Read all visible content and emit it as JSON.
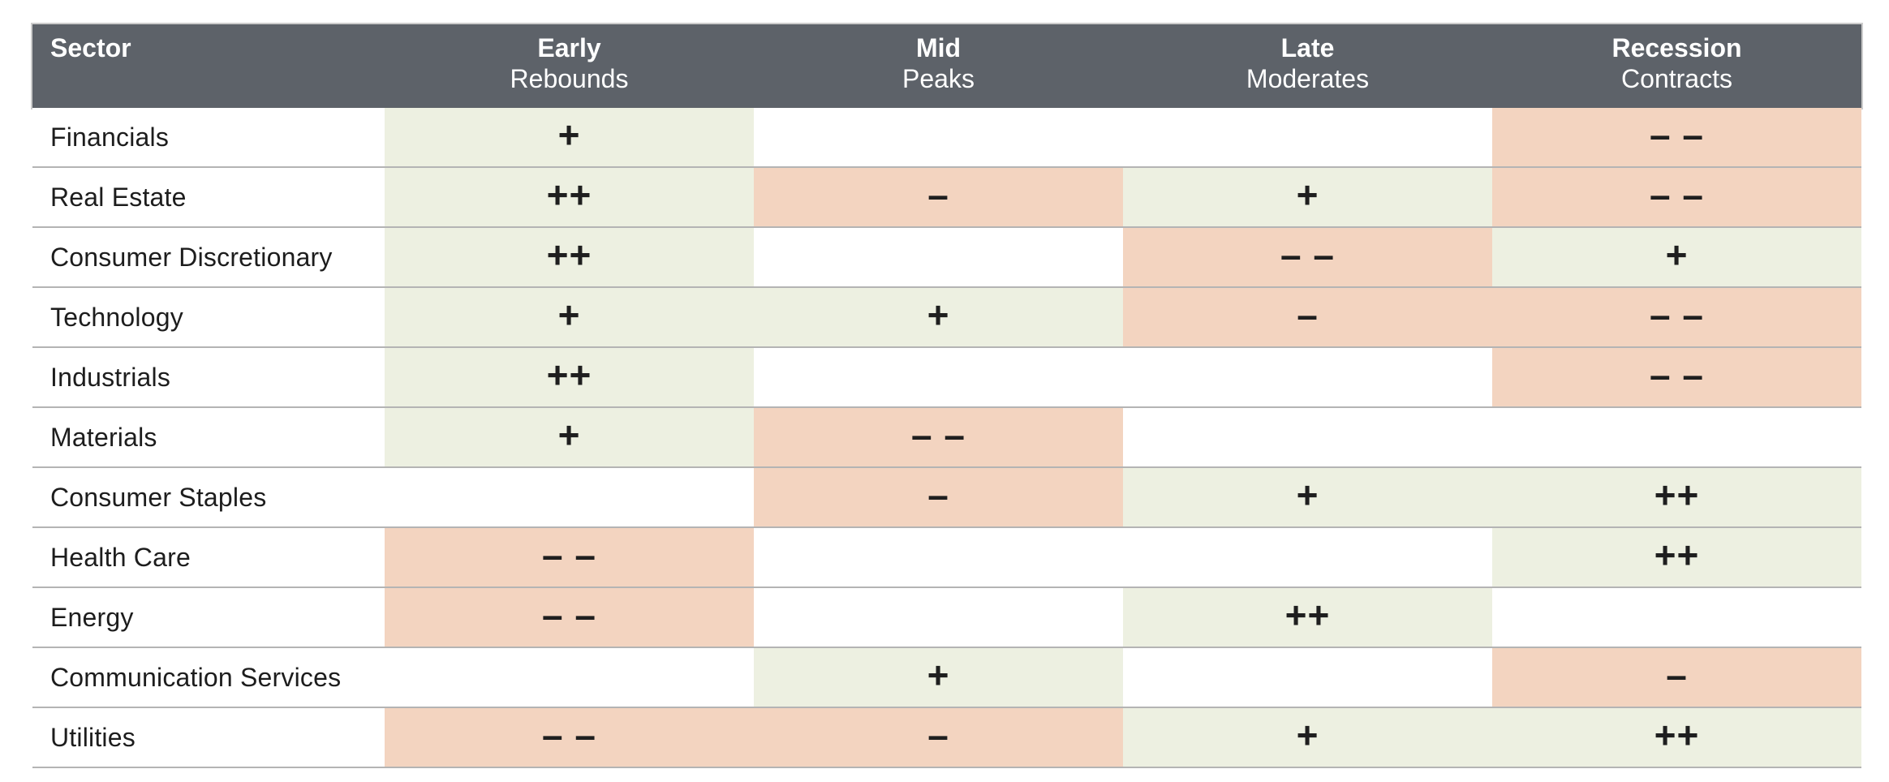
{
  "chart_data": {
    "type": "table",
    "header": {
      "sector": "Sector",
      "phases": [
        {
          "title": "Early",
          "subtitle": "Rebounds"
        },
        {
          "title": "Mid",
          "subtitle": "Peaks"
        },
        {
          "title": "Late",
          "subtitle": "Moderates"
        },
        {
          "title": "Recession",
          "subtitle": "Contracts"
        }
      ]
    },
    "symbols": {
      "strong_positive": "++",
      "positive": "+",
      "negative": "–",
      "strong_negative": "– –"
    },
    "rows": [
      {
        "sector": "Financials",
        "cells": [
          {
            "text": "+",
            "tone": "positive"
          },
          {
            "text": "",
            "tone": "none"
          },
          {
            "text": "",
            "tone": "none"
          },
          {
            "text": "– –",
            "tone": "negative"
          }
        ]
      },
      {
        "sector": "Real Estate",
        "cells": [
          {
            "text": "++",
            "tone": "positive"
          },
          {
            "text": "–",
            "tone": "negative"
          },
          {
            "text": "+",
            "tone": "positive"
          },
          {
            "text": "– –",
            "tone": "negative"
          }
        ]
      },
      {
        "sector": "Consumer Discretionary",
        "cells": [
          {
            "text": "++",
            "tone": "positive"
          },
          {
            "text": "",
            "tone": "none"
          },
          {
            "text": "– –",
            "tone": "negative"
          },
          {
            "text": "+",
            "tone": "positive"
          }
        ]
      },
      {
        "sector": "Technology",
        "cells": [
          {
            "text": "+",
            "tone": "positive"
          },
          {
            "text": "+",
            "tone": "positive"
          },
          {
            "text": "–",
            "tone": "negative"
          },
          {
            "text": "– –",
            "tone": "negative"
          }
        ]
      },
      {
        "sector": "Industrials",
        "cells": [
          {
            "text": "++",
            "tone": "positive"
          },
          {
            "text": "",
            "tone": "none"
          },
          {
            "text": "",
            "tone": "none"
          },
          {
            "text": "– –",
            "tone": "negative"
          }
        ]
      },
      {
        "sector": "Materials",
        "cells": [
          {
            "text": "+",
            "tone": "positive"
          },
          {
            "text": "– –",
            "tone": "negative"
          },
          {
            "text": "",
            "tone": "none"
          },
          {
            "text": "",
            "tone": "none"
          }
        ]
      },
      {
        "sector": "Consumer Staples",
        "cells": [
          {
            "text": "",
            "tone": "none"
          },
          {
            "text": "–",
            "tone": "negative"
          },
          {
            "text": "+",
            "tone": "positive"
          },
          {
            "text": "++",
            "tone": "positive"
          }
        ]
      },
      {
        "sector": "Health Care",
        "cells": [
          {
            "text": "– –",
            "tone": "negative"
          },
          {
            "text": "",
            "tone": "none"
          },
          {
            "text": "",
            "tone": "none"
          },
          {
            "text": "++",
            "tone": "positive"
          }
        ]
      },
      {
        "sector": "Energy",
        "cells": [
          {
            "text": "– –",
            "tone": "negative"
          },
          {
            "text": "",
            "tone": "none"
          },
          {
            "text": "++",
            "tone": "positive"
          },
          {
            "text": "",
            "tone": "none"
          }
        ]
      },
      {
        "sector": "Communication Services",
        "cells": [
          {
            "text": "",
            "tone": "none"
          },
          {
            "text": "+",
            "tone": "positive"
          },
          {
            "text": "",
            "tone": "none"
          },
          {
            "text": "–",
            "tone": "negative"
          }
        ]
      },
      {
        "sector": "Utilities",
        "cells": [
          {
            "text": "– –",
            "tone": "negative"
          },
          {
            "text": "–",
            "tone": "negative"
          },
          {
            "text": "+",
            "tone": "positive"
          },
          {
            "text": "++",
            "tone": "positive"
          }
        ]
      }
    ],
    "colors": {
      "header_bg": "#5d6269",
      "header_text": "#ffffff",
      "positive_bg": "#edf0e1",
      "negative_bg": "#f3d4c0",
      "row_divider": "#b4b4b4",
      "body_text": "#1d1d1d"
    },
    "layout": {
      "grid": "row-dividers-only",
      "legend_position": "none",
      "title": ""
    }
  }
}
